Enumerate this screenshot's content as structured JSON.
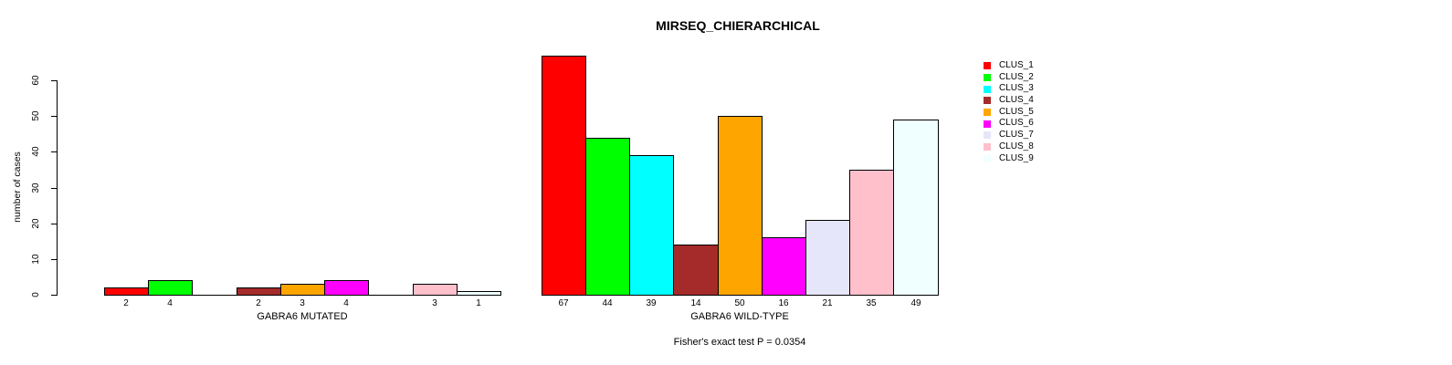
{
  "chart_data": {
    "type": "bar",
    "title": "MIRSEQ_CHIERARCHICAL",
    "ylabel": "number of cases",
    "ylim": [
      0,
      60
    ],
    "yticks": [
      0,
      10,
      20,
      30,
      40,
      50,
      60
    ],
    "grid": false,
    "legend_position": "right",
    "categories": [
      "CLUS_1",
      "CLUS_2",
      "CLUS_3",
      "CLUS_4",
      "CLUS_5",
      "CLUS_6",
      "CLUS_7",
      "CLUS_8",
      "CLUS_9"
    ],
    "colors": [
      "#FF0000",
      "#00FF00",
      "#00FFFF",
      "#A52A2A",
      "#FFA500",
      "#FF00FF",
      "#E6E6FA",
      "#FFC0CB",
      "#F0FFFF"
    ],
    "groups": [
      {
        "xlabel": "GABRA6 MUTATED",
        "values": [
          2,
          4,
          0,
          2,
          3,
          4,
          0,
          3,
          1
        ],
        "bar_labels": [
          "2",
          "4",
          "",
          "2",
          "3",
          "4",
          "",
          "3",
          "1"
        ]
      },
      {
        "xlabel": "GABRA6 WILD-TYPE",
        "values": [
          67,
          44,
          39,
          14,
          50,
          16,
          21,
          35,
          49
        ],
        "bar_labels": [
          "67",
          "44",
          "39",
          "14",
          "50",
          "16",
          "21",
          "35",
          "49"
        ]
      }
    ],
    "annotation": "Fisher's exact test P = 0.0354"
  }
}
